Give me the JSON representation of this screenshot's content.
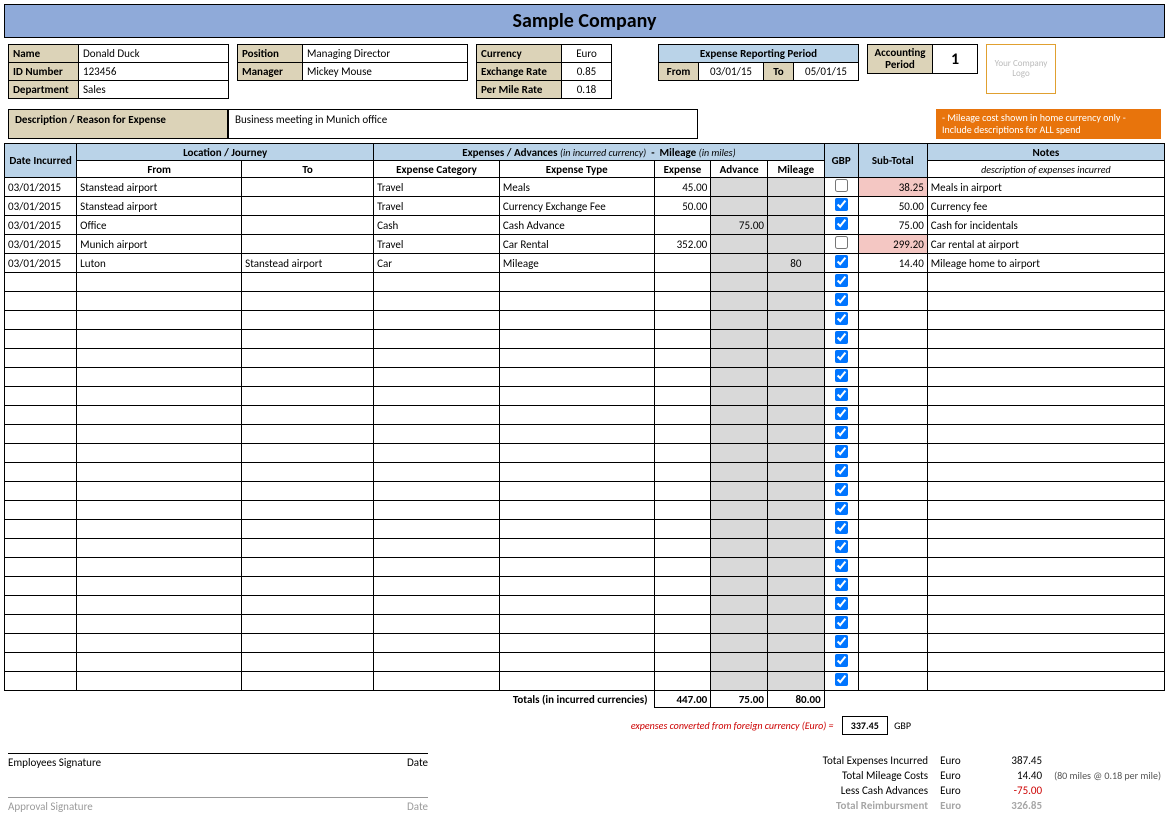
{
  "title": "Sample Company",
  "colors": {
    "header_bg": "#8faad9",
    "label_bg": "#dcd3b8",
    "section_bg": "#bad3e8",
    "grey": "#d9d9d9",
    "pink": "#f4c7c3",
    "notice_bg": "#e8740c"
  },
  "employee": {
    "name_lbl": "Name",
    "name": "Donald Duck",
    "id_lbl": "ID Number",
    "id": "123456",
    "dept_lbl": "Department",
    "dept": "Sales"
  },
  "role": {
    "pos_lbl": "Position",
    "pos": "Managing Director",
    "mgr_lbl": "Manager",
    "mgr": "Mickey Mouse"
  },
  "rates": {
    "cur_lbl": "Currency",
    "cur": "Euro",
    "ex_lbl": "Exchange Rate",
    "ex": "0.85",
    "mile_lbl": "Per Mile Rate",
    "mile": "0.18"
  },
  "period": {
    "title": "Expense Reporting Period",
    "from_lbl": "From",
    "from": "03/01/15",
    "to_lbl": "To",
    "to": "05/01/15"
  },
  "accounting": {
    "lbl": "Accounting Period",
    "val": "1"
  },
  "logo_text": "Your Company Logo",
  "description": {
    "lbl": "Description / Reason for Expense",
    "val": "Business meeting in Munich office"
  },
  "notice": "- Mileage cost shown in home currency only\n- Include descriptions for ALL spend",
  "headers": {
    "date": "Date Incurred",
    "location": "Location / Journey",
    "from": "From",
    "to": "To",
    "expenses": "Expenses / Advances",
    "exp_ital": "(in incurred currency)",
    "mileage_hdr": "Mileage",
    "mile_ital": "(in miles)",
    "cat": "Expense Category",
    "type": "Expense Type",
    "exp": "Expense",
    "adv": "Advance",
    "mil": "Mileage",
    "gbp": "GBP",
    "sub": "Sub-Total",
    "notes": "Notes",
    "notes_sub": "description of expenses incurred"
  },
  "col_widths": {
    "date": 70,
    "from": 160,
    "to": 128,
    "cat": 122,
    "type": 150,
    "exp": 55,
    "adv": 55,
    "mil": 55,
    "gbp": 33,
    "sub": 67,
    "notes": 230
  },
  "rows": [
    {
      "date": "03/01/2015",
      "from": "Stanstead airport",
      "to": "",
      "cat": "Travel",
      "type": "Meals",
      "exp": "45.00",
      "adv": "",
      "mil": "",
      "gbp": false,
      "sub": "38.25",
      "sub_pink": true,
      "notes": "Meals in airport"
    },
    {
      "date": "03/01/2015",
      "from": "Stanstead airport",
      "to": "",
      "cat": "Travel",
      "type": "Currency Exchange Fee",
      "exp": "50.00",
      "adv": "",
      "mil": "",
      "gbp": true,
      "sub": "50.00",
      "sub_pink": false,
      "notes": "Currency fee"
    },
    {
      "date": "03/01/2015",
      "from": "Office",
      "to": "",
      "cat": "Cash",
      "type": "Cash Advance",
      "exp": "",
      "adv": "75.00",
      "mil": "",
      "gbp": true,
      "sub": "75.00",
      "sub_pink": false,
      "notes": "Cash for incidentals"
    },
    {
      "date": "03/01/2015",
      "from": "Munich airport",
      "to": "",
      "cat": "Travel",
      "type": "Car Rental",
      "exp": "352.00",
      "adv": "",
      "mil": "",
      "gbp": false,
      "sub": "299.20",
      "sub_pink": true,
      "notes": "Car rental at airport"
    },
    {
      "date": "03/01/2015",
      "from": "Luton",
      "to": "Stanstead airport",
      "cat": "Car",
      "type": "Mileage",
      "exp": "",
      "adv": "",
      "mil": "80",
      "gbp": true,
      "sub": "14.40",
      "sub_pink": false,
      "notes": "Mileage home to airport"
    }
  ],
  "empty_rows": 22,
  "totals": {
    "lbl": "Totals (in incurred currencies)",
    "exp": "447.00",
    "adv": "75.00",
    "mil": "80.00"
  },
  "converted": {
    "lbl": "expenses converted from foreign currency (Euro) =",
    "val": "337.45",
    "cur": "GBP"
  },
  "signatures": {
    "emp": "Employees Signature",
    "date": "Date",
    "app": "Approval Signature"
  },
  "summary": {
    "r1": {
      "lbl": "Total Expenses Incurred",
      "cur": "Euro",
      "val": "387.45",
      "note": ""
    },
    "r2": {
      "lbl": "Total Mileage Costs",
      "cur": "Euro",
      "val": "14.40",
      "note": "(80 miles @ 0.18 per mile)"
    },
    "r3": {
      "lbl": "Less Cash Advances",
      "cur": "Euro",
      "val": "-75.00",
      "note": ""
    },
    "r4": {
      "lbl": "Total Reimbursment",
      "cur": "Euro",
      "val": "326.85",
      "note": ""
    }
  }
}
